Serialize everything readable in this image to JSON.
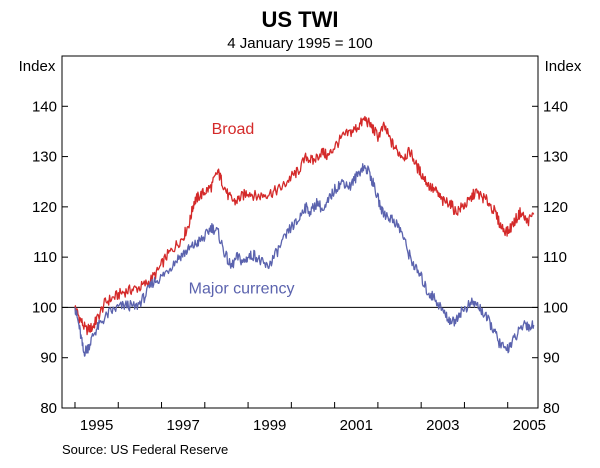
{
  "chart_data": {
    "type": "line",
    "title": "US TWI",
    "subtitle": "4 January 1995 = 100",
    "y_unit_left": "Index",
    "y_unit_right": "Index",
    "ylim": [
      80,
      150
    ],
    "y_ticks": [
      80,
      90,
      100,
      110,
      120,
      130,
      140
    ],
    "x_range": [
      1994.7,
      2005.7
    ],
    "x_ticks": [
      "1995",
      "1997",
      "1999",
      "2001",
      "2003",
      "2005"
    ],
    "baseline": 100,
    "grid": false,
    "series": [
      {
        "name": "Broad",
        "color": "#d42a2a",
        "points": [
          [
            1995.0,
            100
          ],
          [
            1995.1,
            98
          ],
          [
            1995.25,
            95.5
          ],
          [
            1995.4,
            96
          ],
          [
            1995.5,
            97.5
          ],
          [
            1995.7,
            101
          ],
          [
            1995.9,
            102
          ],
          [
            1996.1,
            103
          ],
          [
            1996.3,
            103.5
          ],
          [
            1996.5,
            104
          ],
          [
            1996.7,
            105
          ],
          [
            1996.9,
            107
          ],
          [
            1997.1,
            110
          ],
          [
            1997.3,
            112
          ],
          [
            1997.5,
            114
          ],
          [
            1997.65,
            117
          ],
          [
            1997.75,
            121
          ],
          [
            1997.85,
            122
          ],
          [
            1998.0,
            123
          ],
          [
            1998.15,
            124
          ],
          [
            1998.3,
            127
          ],
          [
            1998.4,
            125
          ],
          [
            1998.55,
            122
          ],
          [
            1998.7,
            121
          ],
          [
            1998.85,
            122
          ],
          [
            1999.0,
            123
          ],
          [
            1999.2,
            122
          ],
          [
            1999.4,
            122.5
          ],
          [
            1999.6,
            123
          ],
          [
            1999.8,
            124
          ],
          [
            2000.0,
            126
          ],
          [
            2000.15,
            127
          ],
          [
            2000.35,
            130
          ],
          [
            2000.5,
            129
          ],
          [
            2000.7,
            131
          ],
          [
            2000.85,
            130
          ],
          [
            2001.0,
            132
          ],
          [
            2001.2,
            134
          ],
          [
            2001.4,
            135
          ],
          [
            2001.55,
            136
          ],
          [
            2001.7,
            137.5
          ],
          [
            2001.85,
            136
          ],
          [
            2002.0,
            134
          ],
          [
            2002.15,
            136
          ],
          [
            2002.3,
            133
          ],
          [
            2002.45,
            131
          ],
          [
            2002.6,
            130
          ],
          [
            2002.75,
            131
          ],
          [
            2002.9,
            128
          ],
          [
            2003.05,
            126
          ],
          [
            2003.2,
            124
          ],
          [
            2003.35,
            123
          ],
          [
            2003.5,
            121
          ],
          [
            2003.65,
            121
          ],
          [
            2003.8,
            119
          ],
          [
            2003.95,
            120
          ],
          [
            2004.1,
            121
          ],
          [
            2004.25,
            123
          ],
          [
            2004.4,
            122
          ],
          [
            2004.55,
            121
          ],
          [
            2004.7,
            119
          ],
          [
            2004.85,
            116
          ],
          [
            2005.0,
            115
          ],
          [
            2005.15,
            117
          ],
          [
            2005.3,
            119
          ],
          [
            2005.45,
            117
          ],
          [
            2005.6,
            118.5
          ]
        ]
      },
      {
        "name": "Major currency",
        "color": "#5b63ae",
        "points": [
          [
            1995.0,
            100
          ],
          [
            1995.1,
            96
          ],
          [
            1995.2,
            91
          ],
          [
            1995.3,
            92
          ],
          [
            1995.45,
            95
          ],
          [
            1995.6,
            97
          ],
          [
            1995.8,
            99
          ],
          [
            1996.0,
            100
          ],
          [
            1996.2,
            100.5
          ],
          [
            1996.4,
            100
          ],
          [
            1996.6,
            102
          ],
          [
            1996.8,
            105
          ],
          [
            1997.0,
            106
          ],
          [
            1997.2,
            108
          ],
          [
            1997.4,
            110
          ],
          [
            1997.55,
            111
          ],
          [
            1997.7,
            112
          ],
          [
            1997.85,
            113
          ],
          [
            1998.0,
            114
          ],
          [
            1998.15,
            116
          ],
          [
            1998.3,
            115
          ],
          [
            1998.45,
            111
          ],
          [
            1998.6,
            108
          ],
          [
            1998.75,
            110
          ],
          [
            1998.9,
            109
          ],
          [
            1999.0,
            110
          ],
          [
            1999.15,
            110.5
          ],
          [
            1999.3,
            109
          ],
          [
            1999.45,
            108
          ],
          [
            1999.6,
            110
          ],
          [
            1999.8,
            113
          ],
          [
            2000.0,
            116
          ],
          [
            2000.15,
            117
          ],
          [
            2000.3,
            120
          ],
          [
            2000.45,
            119
          ],
          [
            2000.6,
            121
          ],
          [
            2000.75,
            119
          ],
          [
            2000.9,
            122
          ],
          [
            2001.05,
            124
          ],
          [
            2001.2,
            125
          ],
          [
            2001.35,
            124
          ],
          [
            2001.5,
            126
          ],
          [
            2001.65,
            128
          ],
          [
            2001.8,
            127
          ],
          [
            2001.95,
            123
          ],
          [
            2002.1,
            119
          ],
          [
            2002.25,
            118
          ],
          [
            2002.4,
            117
          ],
          [
            2002.55,
            115
          ],
          [
            2002.7,
            111
          ],
          [
            2002.85,
            108
          ],
          [
            2003.0,
            106
          ],
          [
            2003.15,
            103
          ],
          [
            2003.3,
            102
          ],
          [
            2003.45,
            100
          ],
          [
            2003.6,
            98
          ],
          [
            2003.75,
            97
          ],
          [
            2003.9,
            99
          ],
          [
            2004.05,
            100
          ],
          [
            2004.2,
            101
          ],
          [
            2004.35,
            100
          ],
          [
            2004.5,
            98
          ],
          [
            2004.65,
            96
          ],
          [
            2004.8,
            93
          ],
          [
            2004.95,
            91.5
          ],
          [
            2005.1,
            93
          ],
          [
            2005.25,
            95
          ],
          [
            2005.4,
            97
          ],
          [
            2005.5,
            96
          ],
          [
            2005.6,
            96.5
          ]
        ]
      }
    ]
  },
  "source": "Source: US Federal Reserve"
}
